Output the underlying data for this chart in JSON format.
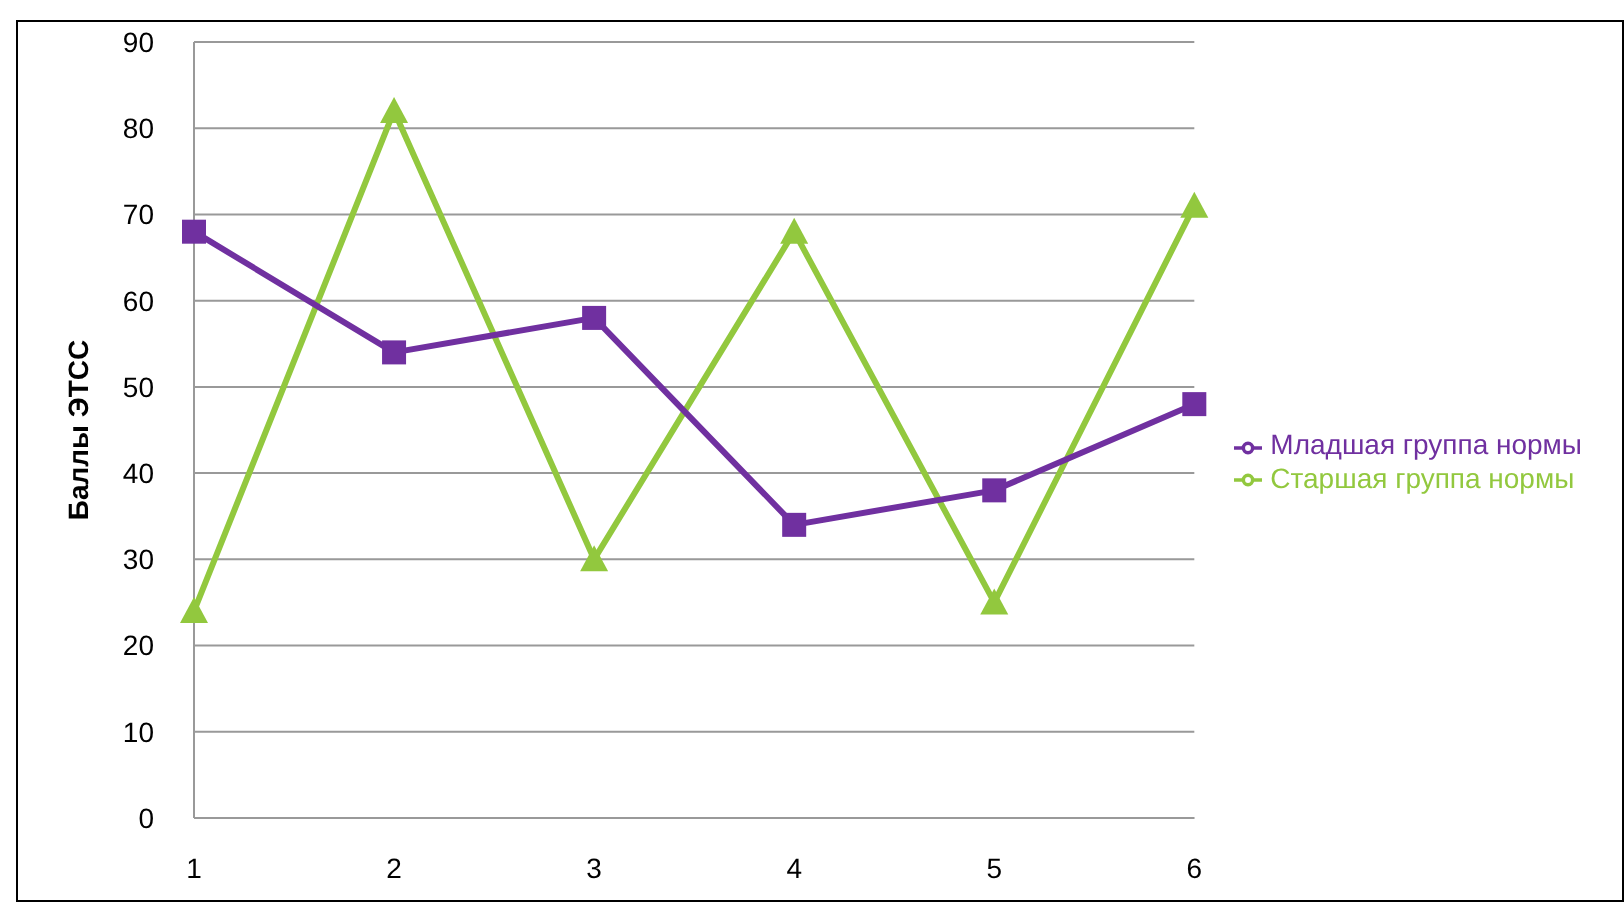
{
  "chart_data": {
    "type": "line",
    "ylabel": "Баллы ЭТСС",
    "categories": [
      "1",
      "2",
      "3",
      "4",
      "5",
      "6"
    ],
    "series": [
      {
        "name": "Старшая группа нормы",
        "color": "#92c83e",
        "marker": "triangle",
        "values": [
          24,
          82,
          30,
          68,
          25,
          71
        ]
      },
      {
        "name": "Младшая группа нормы",
        "color": "#7030a0",
        "marker": "square",
        "values": [
          68,
          54,
          58,
          34,
          38,
          48
        ]
      }
    ],
    "ylim": [
      0,
      90
    ],
    "yticks": [
      0,
      10,
      20,
      30,
      40,
      50,
      60,
      70,
      80,
      90
    ],
    "grid": "y",
    "legend": "right",
    "line_style": "solid"
  }
}
